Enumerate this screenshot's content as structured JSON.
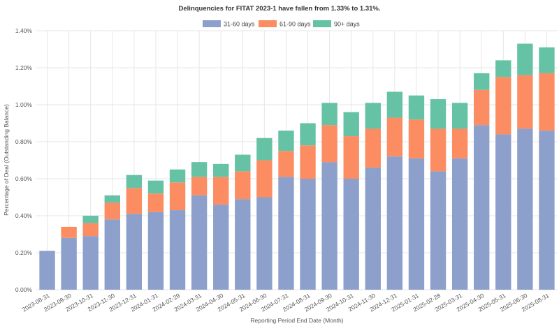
{
  "chart_data": {
    "type": "bar",
    "stacked": true,
    "title": "Delinquencies for FITAT 2023-1 have fallen from 1.33% to 1.31%.",
    "xlabel": "Reporting Period End Date (Month)",
    "ylabel": "Percentage of Deal (Outstanding Balance)",
    "ylim": [
      0,
      1.4
    ],
    "yticks": [
      "0.00%",
      "0.20%",
      "0.40%",
      "0.60%",
      "0.80%",
      "1.00%",
      "1.20%",
      "1.40%"
    ],
    "ytick_values": [
      0,
      0.2,
      0.4,
      0.6,
      0.8,
      1.0,
      1.2,
      1.4
    ],
    "grid": true,
    "legend_position": "top-center",
    "categories": [
      "2023-08-31",
      "2023-09-30",
      "2023-10-31",
      "2023-11-30",
      "2023-12-31",
      "2024-01-31",
      "2024-02-29",
      "2024-03-31",
      "2024-04-30",
      "2024-05-31",
      "2024-06-30",
      "2024-07-31",
      "2024-08-31",
      "2024-09-30",
      "2024-10-31",
      "2024-11-30",
      "2024-12-31",
      "2025-01-31",
      "2025-02-28",
      "2025-03-31",
      "2025-04-30",
      "2025-05-31",
      "2025-06-30",
      "2025-08-31"
    ],
    "series": [
      {
        "name": "31-60 days",
        "color": "#8da0cb",
        "values": [
          0.21,
          0.28,
          0.29,
          0.38,
          0.41,
          0.42,
          0.43,
          0.51,
          0.46,
          0.49,
          0.5,
          0.61,
          0.6,
          0.69,
          0.6,
          0.66,
          0.72,
          0.71,
          0.64,
          0.71,
          0.89,
          0.84,
          0.87,
          0.86
        ]
      },
      {
        "name": "61-90 days",
        "color": "#fc8d62",
        "values": [
          0.0,
          0.06,
          0.07,
          0.09,
          0.14,
          0.1,
          0.15,
          0.1,
          0.15,
          0.15,
          0.2,
          0.14,
          0.18,
          0.2,
          0.23,
          0.21,
          0.21,
          0.21,
          0.23,
          0.16,
          0.19,
          0.31,
          0.29,
          0.31
        ]
      },
      {
        "name": "90+ days",
        "color": "#66c2a5",
        "values": [
          0.0,
          0.0,
          0.04,
          0.04,
          0.07,
          0.07,
          0.07,
          0.08,
          0.07,
          0.09,
          0.12,
          0.11,
          0.12,
          0.12,
          0.13,
          0.14,
          0.14,
          0.13,
          0.16,
          0.14,
          0.09,
          0.09,
          0.17,
          0.14
        ]
      }
    ]
  }
}
